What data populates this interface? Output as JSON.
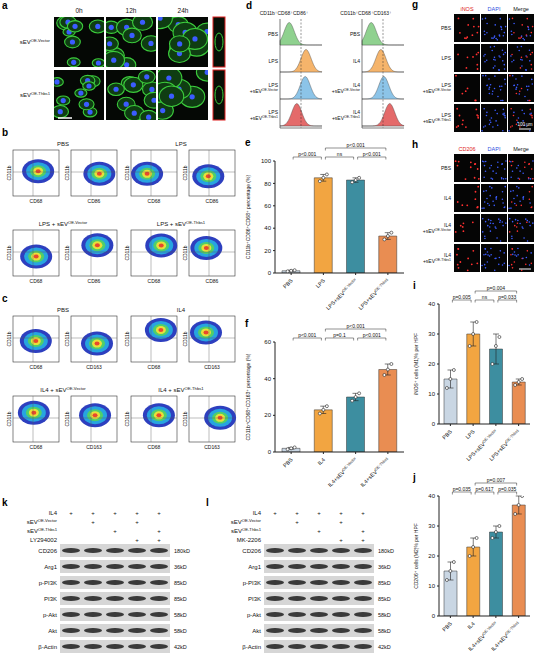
{
  "panels": {
    "a": {
      "letter": "a",
      "columns": [
        "0h",
        "12h",
        "24h"
      ],
      "rows": [
        "sEVOE-Vector",
        "sEVOE-Thbs1"
      ]
    },
    "b": {
      "letter": "b",
      "groups": [
        "PBS",
        "LPS",
        "LPS + sEVOE-Vector",
        "LPS + sEVOE-Thbs1"
      ],
      "y_label": "CD11b",
      "x_labels": [
        "CD68",
        "CD86"
      ]
    },
    "c": {
      "letter": "c",
      "groups": [
        "PBS",
        "IL4",
        "IL4 + sEVOE-Vector",
        "IL4 + sEVOE-Thbs1"
      ],
      "y_label": "CD11b",
      "x_labels": [
        "CD68",
        "CD163"
      ]
    },
    "d": {
      "letter": "d",
      "histograms": [
        {
          "title": "CD11b⁺CD68⁺CD86⁺",
          "rows": [
            "PBS",
            "LPS",
            "LPS+sEVOE-Vector",
            "LPS+sEVOE-Thbs1"
          ],
          "colors": [
            "#8fd18f",
            "#f5b46b",
            "#8cc4e8",
            "#e46a6a"
          ]
        },
        {
          "title": "CD11b⁺CD68⁺CD163⁺",
          "rows": [
            "PBS",
            "IL4",
            "IL4+sEVOE-Vector",
            "IL4+sEVOE-Thbs1"
          ],
          "colors": [
            "#8fd18f",
            "#f5b46b",
            "#8cc4e8",
            "#e46a6a"
          ]
        }
      ]
    },
    "g": {
      "letter": "g",
      "columns": [
        "iNOS",
        "DAPI",
        "Merge"
      ],
      "rows": [
        "PBS",
        "LPS",
        "LPS+sEVOE-Vector",
        "LPS+sEVOE-Thbs1"
      ],
      "scale_bar": "100 μm"
    },
    "h": {
      "letter": "h",
      "columns": [
        "CD206",
        "DAPI",
        "Merge"
      ],
      "rows": [
        "PBS",
        "IL4",
        "IL4+sEVOE-Vector",
        "IL4+sEVOE-Thbs1"
      ]
    },
    "k": {
      "letter": "k",
      "conditions": [
        {
          "name": "IL4",
          "lanes": [
            "+",
            "+",
            "+",
            "+",
            "+"
          ]
        },
        {
          "name": "sEVOE-Vector",
          "lanes": [
            null,
            "+",
            null,
            "+",
            null
          ]
        },
        {
          "name": "sEVOE-Thbs1",
          "lanes": [
            null,
            null,
            "+",
            null,
            "+"
          ]
        },
        {
          "name": "LY294002",
          "lanes": [
            null,
            null,
            null,
            "+",
            "+"
          ]
        }
      ],
      "bands": [
        {
          "name": "CD206",
          "size": "180kD"
        },
        {
          "name": "Arg1",
          "size": "36kD"
        },
        {
          "name": "p-PI3K",
          "size": "85kD"
        },
        {
          "name": "PI3K",
          "size": "85kD"
        },
        {
          "name": "p-Akt",
          "size": "58kD"
        },
        {
          "name": "Akt",
          "size": "58kD"
        },
        {
          "name": "β-Actin",
          "size": "42kD"
        }
      ]
    },
    "l": {
      "letter": "l",
      "conditions": [
        {
          "name": "IL4",
          "lanes": [
            "+",
            "+",
            "+",
            "+",
            "+"
          ]
        },
        {
          "name": "sEVOE-Vector",
          "lanes": [
            null,
            "+",
            null,
            "+",
            null
          ]
        },
        {
          "name": "sEVOE-Thbs1",
          "lanes": [
            null,
            null,
            "+",
            null,
            "+"
          ]
        },
        {
          "name": "MK-2206",
          "lanes": [
            null,
            null,
            null,
            "+",
            "+"
          ]
        }
      ],
      "bands": [
        {
          "name": "CD206",
          "size": "180kD"
        },
        {
          "name": "Arg1",
          "size": "36kD"
        },
        {
          "name": "p-PI3K",
          "size": "85kD"
        },
        {
          "name": "PI3K",
          "size": "85kD"
        },
        {
          "name": "p-Akt",
          "size": "58kD"
        },
        {
          "name": "Akt",
          "size": "58kD"
        },
        {
          "name": "β-Actin",
          "size": "42kD"
        }
      ]
    }
  },
  "chart_data": [
    {
      "panel": "e",
      "type": "bar",
      "y_label": "CD11b⁺CD86⁺CD68⁺ percentage (%)",
      "categories": [
        "PBS",
        "LPS",
        "LPS+sEVOE-Vector",
        "LPS+sEVOE-Thbs1"
      ],
      "values": [
        2,
        85,
        83,
        33
      ],
      "errors": [
        0.5,
        3,
        2,
        3
      ],
      "points": [
        [
          1.5,
          2,
          2.5
        ],
        [
          82,
          85,
          88
        ],
        [
          81,
          83,
          85
        ],
        [
          30,
          33,
          36
        ]
      ],
      "colors": [
        "#c9d6e3",
        "#f2a541",
        "#3d8ea0",
        "#e98d52"
      ],
      "ylim": [
        0,
        100
      ],
      "yticks": [
        0,
        20,
        40,
        60,
        80,
        100
      ],
      "annotations": [
        {
          "text": "p<0.001",
          "between": [
            "PBS",
            "LPS"
          ]
        },
        {
          "text": "ns",
          "between": [
            "LPS",
            "LPS+sEVOE-Vector"
          ]
        },
        {
          "text": "p<0.001",
          "between": [
            "LPS+sEVOE-Vector",
            "LPS+sEVOE-Thbs1"
          ]
        },
        {
          "text": "p<0.001",
          "between": [
            "LPS",
            "LPS+sEVOE-Thbs1"
          ]
        }
      ]
    },
    {
      "panel": "f",
      "type": "bar",
      "y_label": "CD11b⁺CD68⁺CD163⁺ percentage (%)",
      "categories": [
        "PBS",
        "IL4",
        "IL4+sEVOE-Vector",
        "IL4+sEVOE-Thbs1"
      ],
      "values": [
        2,
        23,
        30,
        45
      ],
      "errors": [
        0.5,
        2,
        2,
        3
      ],
      "points": [
        [
          1.5,
          2,
          2.5
        ],
        [
          21,
          23,
          25
        ],
        [
          28,
          30,
          32
        ],
        [
          42,
          45,
          48
        ]
      ],
      "colors": [
        "#c9d6e3",
        "#f2a541",
        "#3d8ea0",
        "#e98d52"
      ],
      "ylim": [
        0,
        60
      ],
      "yticks": [
        0,
        20,
        40,
        60
      ],
      "annotations": [
        {
          "text": "p<0.001",
          "between": [
            "PBS",
            "IL4"
          ]
        },
        {
          "text": "p=0.1",
          "between": [
            "IL4",
            "IL4+sEVOE-Vector"
          ]
        },
        {
          "text": "p<0.001",
          "between": [
            "IL4+sEVOE-Vector",
            "IL4+sEVOE-Thbs1"
          ]
        },
        {
          "text": "p<0.001",
          "between": [
            "IL4",
            "IL4+sEVOE-Thbs1"
          ]
        }
      ]
    },
    {
      "panel": "i",
      "type": "bar",
      "y_label": "iNOS⁺ cells (M1)% per HPF",
      "categories": [
        "PBS",
        "LPS",
        "LPS+sEVOE-Vector",
        "LPS+sEVOE-Thbs1"
      ],
      "values": [
        15,
        30,
        25,
        14
      ],
      "errors": [
        3,
        4,
        5,
        1
      ],
      "points": [
        [
          12,
          15,
          18
        ],
        [
          26,
          30,
          34
        ],
        [
          20,
          26,
          29
        ],
        [
          13,
          14,
          15
        ]
      ],
      "colors": [
        "#c9d6e3",
        "#f2a541",
        "#3d8ea0",
        "#e98d52"
      ],
      "ylim": [
        0,
        40
      ],
      "yticks": [
        0,
        10,
        20,
        30,
        40
      ],
      "annotations": [
        {
          "text": "p=0.005",
          "between": [
            "PBS",
            "LPS"
          ]
        },
        {
          "text": "ns",
          "between": [
            "LPS",
            "LPS+sEVOE-Vector"
          ]
        },
        {
          "text": "p=0.033",
          "between": [
            "LPS+sEVOE-Vector",
            "LPS+sEVOE-Thbs1"
          ]
        },
        {
          "text": "p=0.004",
          "between": [
            "LPS",
            "LPS+sEVOE-Thbs1"
          ]
        }
      ]
    },
    {
      "panel": "j",
      "type": "bar",
      "y_label": "CD206⁺ cells (M2)% per HPF",
      "categories": [
        "PBS",
        "IL4",
        "IL4+sEVOE-Vector",
        "IL4+sEVOE-Thbs1"
      ],
      "values": [
        15,
        23,
        28,
        37
      ],
      "errors": [
        3,
        3,
        2,
        3
      ],
      "points": [
        [
          12,
          15,
          18
        ],
        [
          20,
          23,
          26
        ],
        [
          26,
          28,
          30
        ],
        [
          34,
          37,
          40
        ]
      ],
      "colors": [
        "#c9d6e3",
        "#f2a541",
        "#3d8ea0",
        "#e98d52"
      ],
      "ylim": [
        0,
        40
      ],
      "yticks": [
        0,
        10,
        20,
        30,
        40
      ],
      "annotations": [
        {
          "text": "p=0.035",
          "between": [
            "PBS",
            "IL4"
          ]
        },
        {
          "text": "p=0.617",
          "between": [
            "IL4",
            "IL4+sEVOE-Vector"
          ]
        },
        {
          "text": "p=0.035",
          "between": [
            "IL4+sEVOE-Vector",
            "IL4+sEVOE-Thbs1"
          ]
        },
        {
          "text": "p=0.007",
          "between": [
            "IL4",
            "IL4+sEVOE-Thbs1"
          ]
        }
      ]
    }
  ]
}
